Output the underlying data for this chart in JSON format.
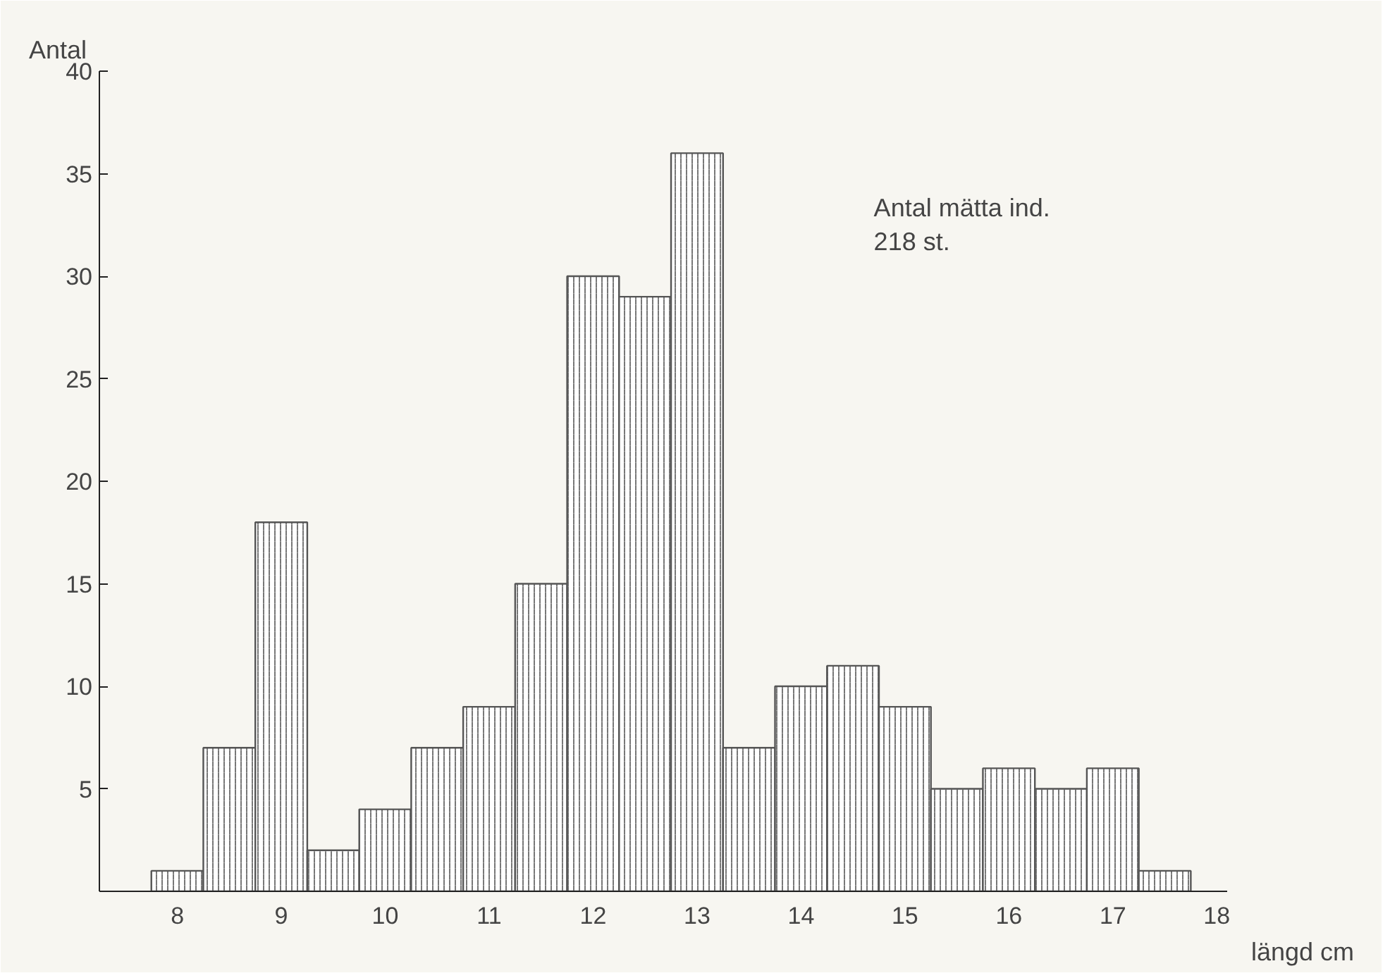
{
  "chart_data": {
    "type": "histogram",
    "ylabel": "Antal",
    "xlabel": "längd cm",
    "bins": [
      7.75,
      8.25,
      8.75,
      9.25,
      9.75,
      10.25,
      10.75,
      11.25,
      11.75,
      12.25,
      12.75,
      13.25,
      13.75,
      14.25,
      14.75,
      15.25,
      15.75,
      16.25,
      16.75,
      17.25,
      17.75
    ],
    "values": [
      1,
      7,
      18,
      2,
      4,
      7,
      9,
      15,
      30,
      29,
      36,
      7,
      10,
      11,
      9,
      5,
      6,
      5,
      6,
      1
    ],
    "color": "#555555",
    "xlim": [
      7.25,
      18.1
    ],
    "ylim": [
      0,
      40
    ],
    "xticks": [
      8,
      9,
      10,
      11,
      12,
      13,
      14,
      15,
      16,
      17,
      18
    ],
    "yticks": [
      5,
      10,
      15,
      20,
      25,
      30,
      35,
      40
    ],
    "grid": false,
    "annotations": [
      "Antal mätta ind.\n218 st."
    ]
  }
}
